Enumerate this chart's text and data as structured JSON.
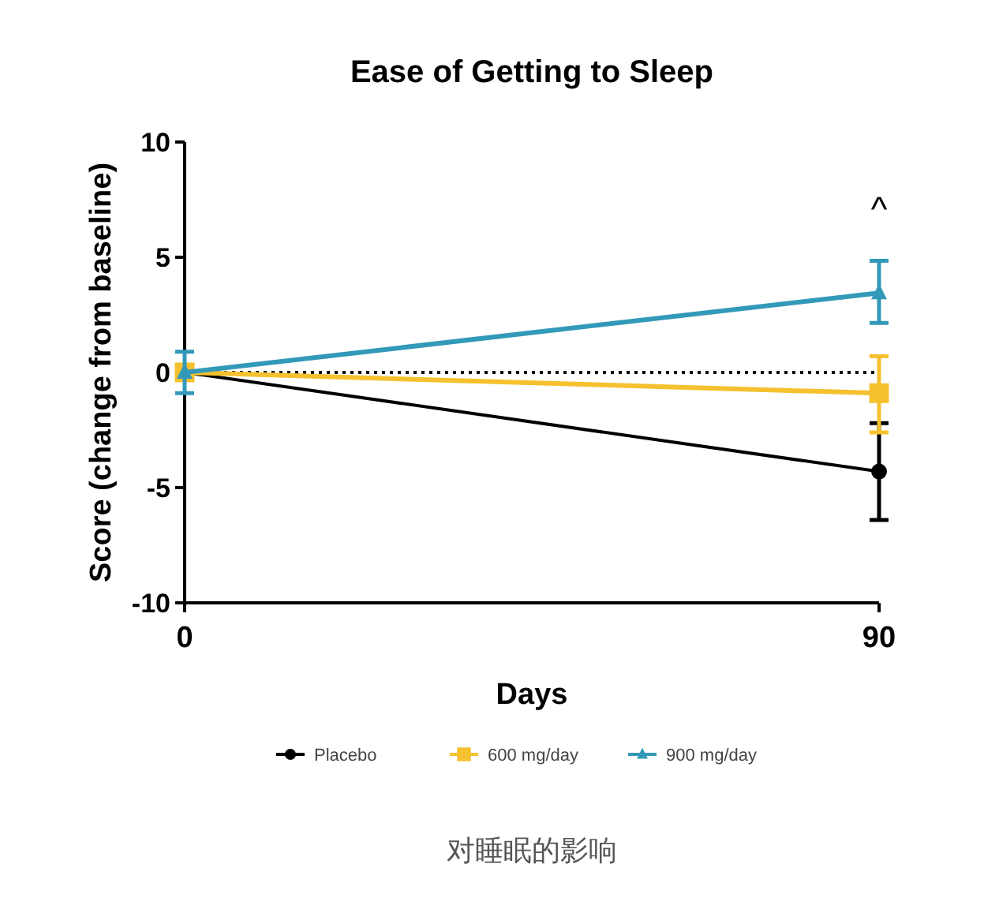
{
  "chart_data": {
    "type": "line",
    "title": "Ease of Getting to Sleep",
    "xlabel": "Days",
    "ylabel": "Score  (change from baseline)",
    "x": [
      0,
      90
    ],
    "xlim": [
      0,
      90
    ],
    "xticks": [
      0,
      90
    ],
    "ylim": [
      -10,
      10
    ],
    "yticks": [
      -10,
      -5,
      0,
      5,
      10
    ],
    "grid": false,
    "legend": "bottom",
    "line_style": "solid",
    "series": [
      {
        "name": "Placebo",
        "color": "#000000",
        "marker": "circle",
        "values": [
          0,
          -4.3
        ],
        "errors": [
          null,
          [
            -6.4,
            -2.2
          ]
        ]
      },
      {
        "name": "600 mg/day",
        "color": "#f5c12e",
        "marker": "square",
        "values": [
          0,
          -0.9
        ],
        "errors": [
          null,
          [
            -2.6,
            0.7
          ]
        ]
      },
      {
        "name": "900 mg/day",
        "color": "#3399b8",
        "marker": "triangle",
        "values": [
          0,
          3.45
        ],
        "errors": [
          [
            -0.9,
            0.9
          ],
          [
            2.15,
            4.85
          ]
        ]
      }
    ],
    "ref_lines": [
      {
        "axis": "y",
        "value": 0,
        "line_style": "dotted",
        "color": "#000000"
      }
    ],
    "annotations": [
      "^",
      "对睡眠的影响"
    ]
  }
}
